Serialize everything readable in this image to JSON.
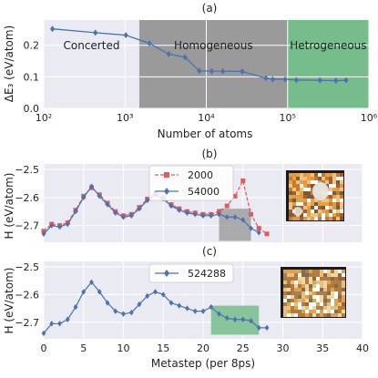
{
  "colors": {
    "blue": "#4c72b0",
    "red": "#dd5c5c",
    "gray_region": "#9a9a9a",
    "green_region": "#77bd8c",
    "panel_bg": "#eaeaf2"
  },
  "chart_data": [
    {
      "type": "line",
      "title": "(a)",
      "xlabel": "Number of atoms",
      "ylabel": "ΔE₃ (eV/atom)",
      "xscale": "log",
      "xlim": [
        100,
        1000000
      ],
      "ylim": [
        0,
        0.28
      ],
      "xticks": [
        100,
        1000,
        10000,
        100000,
        1000000
      ],
      "xtick_labels": [
        "10²",
        "10³",
        "10⁴",
        "10⁵",
        "10⁶"
      ],
      "yticks": [
        0.0,
        0.1,
        0.2
      ],
      "ytick_labels": [
        "0.0",
        "0.1",
        "0.2"
      ],
      "grid": true,
      "regions": [
        {
          "label": "Concerted",
          "x_from": 100,
          "x_to": 1500,
          "fill": "none"
        },
        {
          "label": "Homogeneous",
          "x_from": 1500,
          "x_to": 100000,
          "fill": "gray"
        },
        {
          "label": "Hetrogeneous",
          "x_from": 100000,
          "x_to": 1000000,
          "fill": "green"
        }
      ],
      "series": [
        {
          "marker": "diamond",
          "x": [
            128,
            432,
            1024,
            2000,
            3456,
            5488,
            8192,
            11664,
            16000,
            27648,
            54000,
            65536,
            93312,
            128000,
            250000,
            393216,
            524288
          ],
          "y": [
            0.252,
            0.24,
            0.232,
            0.206,
            0.172,
            0.162,
            0.119,
            0.118,
            0.118,
            0.117,
            0.096,
            0.092,
            0.092,
            0.09,
            0.089,
            0.088,
            0.089
          ]
        }
      ]
    },
    {
      "type": "line",
      "title": "(b)",
      "xlabel": "",
      "ylabel": "H (eV/atom)",
      "xlim": [
        0,
        40
      ],
      "ylim": [
        -2.76,
        -2.48
      ],
      "yticks": [
        -2.7,
        -2.6,
        -2.5
      ],
      "ytick_labels": [
        "−2.7",
        "−2.6",
        "−2.5"
      ],
      "grid": true,
      "legend": "top-center",
      "highlight": {
        "x_from": 22,
        "x_to": 26,
        "y_from": -2.755,
        "y_to": -2.64,
        "fill": "gray"
      },
      "inset": "snapshot-image",
      "series": [
        {
          "name": "2000",
          "style": "dashed",
          "marker": "square",
          "x": [
            0,
            1,
            2,
            3,
            4,
            5,
            6,
            7,
            8,
            9,
            10,
            11,
            12,
            13,
            14,
            15,
            16,
            17,
            18,
            19,
            20,
            21,
            22,
            23,
            24,
            25,
            26,
            27,
            28
          ],
          "y": [
            -2.72,
            -2.695,
            -2.7,
            -2.69,
            -2.645,
            -2.595,
            -2.565,
            -2.59,
            -2.62,
            -2.65,
            -2.665,
            -2.66,
            -2.635,
            -2.605,
            -2.585,
            -2.6,
            -2.625,
            -2.64,
            -2.65,
            -2.655,
            -2.66,
            -2.66,
            -2.65,
            -2.63,
            -2.595,
            -2.54,
            -2.66,
            -2.71,
            -2.73
          ]
        },
        {
          "name": "54000",
          "style": "solid",
          "marker": "diamond",
          "x": [
            0,
            1,
            2,
            3,
            4,
            5,
            6,
            7,
            8,
            9,
            10,
            11,
            12,
            13,
            14,
            15,
            16,
            17,
            18,
            19,
            20,
            21,
            22,
            23,
            24,
            25,
            26,
            27
          ],
          "y": [
            -2.73,
            -2.7,
            -2.705,
            -2.695,
            -2.65,
            -2.6,
            -2.56,
            -2.595,
            -2.625,
            -2.655,
            -2.67,
            -2.665,
            -2.64,
            -2.61,
            -2.59,
            -2.605,
            -2.63,
            -2.645,
            -2.655,
            -2.66,
            -2.665,
            -2.665,
            -2.66,
            -2.67,
            -2.67,
            -2.68,
            -2.71,
            -2.725
          ]
        }
      ]
    },
    {
      "type": "line",
      "title": "(c)",
      "xlabel": "Metastep (per 8ps)",
      "ylabel": "H (eV/atom)",
      "xlim": [
        0,
        40
      ],
      "ylim": [
        -2.76,
        -2.48
      ],
      "xticks": [
        0,
        5,
        10,
        15,
        20,
        25,
        30,
        35,
        40
      ],
      "xtick_labels": [
        "0",
        "5",
        "10",
        "15",
        "20",
        "25",
        "30",
        "35",
        "40"
      ],
      "yticks": [
        -2.7,
        -2.6,
        -2.5
      ],
      "ytick_labels": [
        "−2.7",
        "−2.6",
        "−2.5"
      ],
      "grid": true,
      "legend": "top-center",
      "highlight": {
        "x_from": 21,
        "x_to": 27,
        "y_from": -2.745,
        "y_to": -2.64,
        "fill": "green"
      },
      "inset": "snapshot-image",
      "series": [
        {
          "name": "524288",
          "style": "solid",
          "marker": "diamond",
          "x": [
            0,
            1,
            2,
            3,
            4,
            5,
            6,
            7,
            8,
            9,
            10,
            11,
            12,
            13,
            14,
            15,
            16,
            17,
            18,
            19,
            20,
            21,
            22,
            23,
            24,
            25,
            26,
            27,
            28
          ],
          "y": [
            -2.74,
            -2.705,
            -2.705,
            -2.69,
            -2.645,
            -2.59,
            -2.555,
            -2.59,
            -2.63,
            -2.66,
            -2.67,
            -2.665,
            -2.635,
            -2.605,
            -2.59,
            -2.6,
            -2.63,
            -2.64,
            -2.65,
            -2.66,
            -2.66,
            -2.645,
            -2.67,
            -2.685,
            -2.69,
            -2.69,
            -2.695,
            -2.72,
            -2.72
          ]
        }
      ]
    }
  ]
}
